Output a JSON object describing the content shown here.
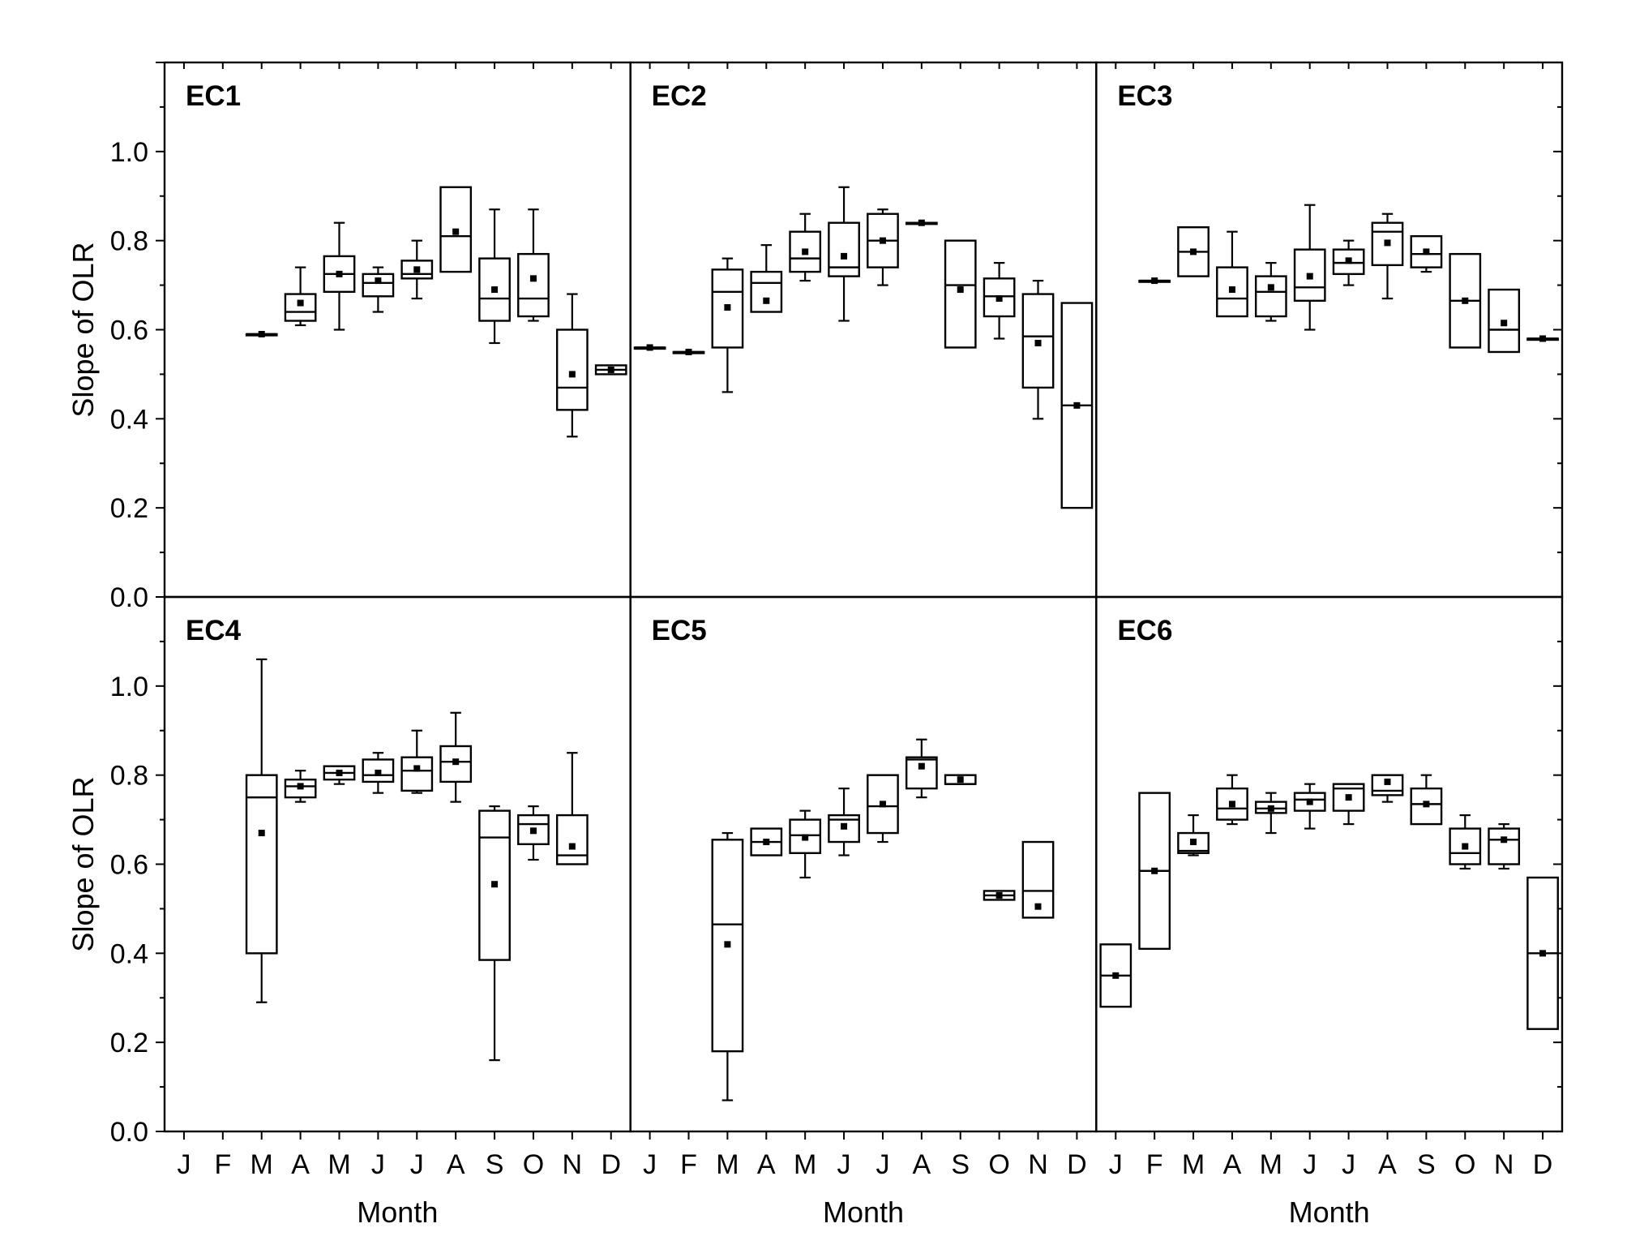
{
  "chart_data": {
    "type": "box",
    "layout": "2 rows x 3 columns of panels, shared axes",
    "ylabel": "Slope of OLR",
    "xlabel": "Month",
    "categories": [
      "J",
      "F",
      "M",
      "A",
      "M",
      "J",
      "J",
      "A",
      "S",
      "O",
      "N",
      "D"
    ],
    "ylim": [
      0.0,
      1.2
    ],
    "yticks": [
      "0.0",
      "0.2",
      "0.4",
      "0.6",
      "0.8",
      "1.0"
    ],
    "box_fields": [
      "month_index",
      "whisker_low",
      "q1",
      "median",
      "q3",
      "whisker_high",
      "mean"
    ],
    "panels": [
      {
        "title": "EC1",
        "boxes": [
          [
            2,
            0.59,
            0.59,
            0.59,
            0.59,
            0.59,
            0.59
          ],
          [
            3,
            0.61,
            0.62,
            0.64,
            0.68,
            0.74,
            0.66
          ],
          [
            4,
            0.6,
            0.685,
            0.725,
            0.765,
            0.84,
            0.725
          ],
          [
            5,
            0.64,
            0.675,
            0.705,
            0.725,
            0.74,
            0.71
          ],
          [
            6,
            0.67,
            0.715,
            0.725,
            0.755,
            0.8,
            0.735
          ],
          [
            7,
            0.73,
            0.73,
            0.81,
            0.92,
            0.92,
            0.82
          ],
          [
            8,
            0.57,
            0.62,
            0.67,
            0.76,
            0.87,
            0.69
          ],
          [
            9,
            0.62,
            0.63,
            0.67,
            0.77,
            0.87,
            0.715
          ],
          [
            10,
            0.36,
            0.42,
            0.47,
            0.6,
            0.68,
            0.5
          ],
          [
            11,
            0.5,
            0.5,
            0.51,
            0.52,
            0.52,
            0.51
          ]
        ]
      },
      {
        "title": "EC2",
        "boxes": [
          [
            0,
            0.56,
            0.56,
            0.56,
            0.56,
            0.56,
            0.56
          ],
          [
            1,
            0.55,
            0.55,
            0.55,
            0.55,
            0.55,
            0.55
          ],
          [
            2,
            0.46,
            0.56,
            0.685,
            0.735,
            0.76,
            0.65
          ],
          [
            3,
            0.64,
            0.64,
            0.705,
            0.73,
            0.79,
            0.665
          ],
          [
            4,
            0.71,
            0.73,
            0.76,
            0.82,
            0.86,
            0.775
          ],
          [
            5,
            0.62,
            0.72,
            0.74,
            0.84,
            0.92,
            0.765
          ],
          [
            6,
            0.7,
            0.74,
            0.8,
            0.86,
            0.87,
            0.8
          ],
          [
            7,
            0.84,
            0.84,
            0.84,
            0.84,
            0.84,
            0.84
          ],
          [
            8,
            0.56,
            0.56,
            0.7,
            0.8,
            0.8,
            0.69
          ],
          [
            9,
            0.58,
            0.63,
            0.675,
            0.715,
            0.75,
            0.67
          ],
          [
            10,
            0.4,
            0.47,
            0.585,
            0.68,
            0.71,
            0.57
          ],
          [
            11,
            0.2,
            0.2,
            0.43,
            0.66,
            0.66,
            0.43
          ]
        ]
      },
      {
        "title": "EC3",
        "boxes": [
          [
            1,
            0.71,
            0.71,
            0.71,
            0.71,
            0.71,
            0.71
          ],
          [
            2,
            0.72,
            0.72,
            0.775,
            0.83,
            0.83,
            0.775
          ],
          [
            3,
            0.63,
            0.63,
            0.67,
            0.74,
            0.82,
            0.69
          ],
          [
            4,
            0.62,
            0.63,
            0.685,
            0.72,
            0.75,
            0.695
          ],
          [
            5,
            0.6,
            0.665,
            0.695,
            0.78,
            0.88,
            0.72
          ],
          [
            6,
            0.7,
            0.725,
            0.75,
            0.78,
            0.8,
            0.755
          ],
          [
            7,
            0.67,
            0.745,
            0.82,
            0.84,
            0.86,
            0.795
          ],
          [
            8,
            0.73,
            0.74,
            0.77,
            0.81,
            0.81,
            0.775
          ],
          [
            9,
            0.56,
            0.56,
            0.665,
            0.77,
            0.77,
            0.665
          ],
          [
            10,
            0.55,
            0.55,
            0.6,
            0.69,
            0.69,
            0.615
          ],
          [
            11,
            0.58,
            0.58,
            0.58,
            0.58,
            0.58,
            0.58
          ]
        ]
      },
      {
        "title": "EC4",
        "boxes": [
          [
            2,
            0.29,
            0.4,
            0.75,
            0.8,
            1.06,
            0.67
          ],
          [
            3,
            0.74,
            0.75,
            0.775,
            0.79,
            0.81,
            0.775
          ],
          [
            4,
            0.78,
            0.79,
            0.805,
            0.82,
            0.82,
            0.805
          ],
          [
            5,
            0.76,
            0.785,
            0.8,
            0.835,
            0.85,
            0.805
          ],
          [
            6,
            0.76,
            0.765,
            0.81,
            0.84,
            0.9,
            0.815
          ],
          [
            7,
            0.74,
            0.785,
            0.83,
            0.865,
            0.94,
            0.83
          ],
          [
            8,
            0.16,
            0.385,
            0.66,
            0.72,
            0.73,
            0.555
          ],
          [
            9,
            0.61,
            0.645,
            0.69,
            0.71,
            0.73,
            0.675
          ],
          [
            10,
            0.6,
            0.6,
            0.62,
            0.71,
            0.85,
            0.64
          ]
        ]
      },
      {
        "title": "EC5",
        "boxes": [
          [
            2,
            0.07,
            0.18,
            0.465,
            0.655,
            0.67,
            0.42
          ],
          [
            3,
            0.62,
            0.62,
            0.65,
            0.68,
            0.68,
            0.65
          ],
          [
            4,
            0.57,
            0.625,
            0.665,
            0.7,
            0.72,
            0.66
          ],
          [
            5,
            0.62,
            0.65,
            0.7,
            0.71,
            0.77,
            0.685
          ],
          [
            6,
            0.65,
            0.67,
            0.73,
            0.8,
            0.8,
            0.735
          ],
          [
            7,
            0.75,
            0.77,
            0.835,
            0.84,
            0.88,
            0.82
          ],
          [
            8,
            0.78,
            0.78,
            0.78,
            0.8,
            0.8,
            0.79
          ],
          [
            9,
            0.52,
            0.52,
            0.53,
            0.54,
            0.54,
            0.53
          ],
          [
            10,
            0.48,
            0.48,
            0.54,
            0.65,
            0.65,
            0.505
          ]
        ]
      },
      {
        "title": "EC6",
        "boxes": [
          [
            0,
            0.28,
            0.28,
            0.35,
            0.42,
            0.42,
            0.35
          ],
          [
            1,
            0.41,
            0.41,
            0.585,
            0.76,
            0.76,
            0.585
          ],
          [
            2,
            0.62,
            0.625,
            0.63,
            0.67,
            0.71,
            0.65
          ],
          [
            3,
            0.69,
            0.7,
            0.725,
            0.77,
            0.8,
            0.735
          ],
          [
            4,
            0.67,
            0.715,
            0.725,
            0.74,
            0.76,
            0.725
          ],
          [
            5,
            0.68,
            0.72,
            0.745,
            0.76,
            0.78,
            0.74
          ],
          [
            6,
            0.69,
            0.72,
            0.77,
            0.78,
            0.78,
            0.75
          ],
          [
            7,
            0.74,
            0.755,
            0.765,
            0.8,
            0.8,
            0.785
          ],
          [
            8,
            0.69,
            0.69,
            0.735,
            0.77,
            0.8,
            0.735
          ],
          [
            9,
            0.59,
            0.6,
            0.625,
            0.68,
            0.71,
            0.64
          ],
          [
            10,
            0.59,
            0.6,
            0.655,
            0.68,
            0.69,
            0.655
          ],
          [
            11,
            0.23,
            0.23,
            0.4,
            0.57,
            0.57,
            0.4
          ]
        ]
      }
    ]
  }
}
